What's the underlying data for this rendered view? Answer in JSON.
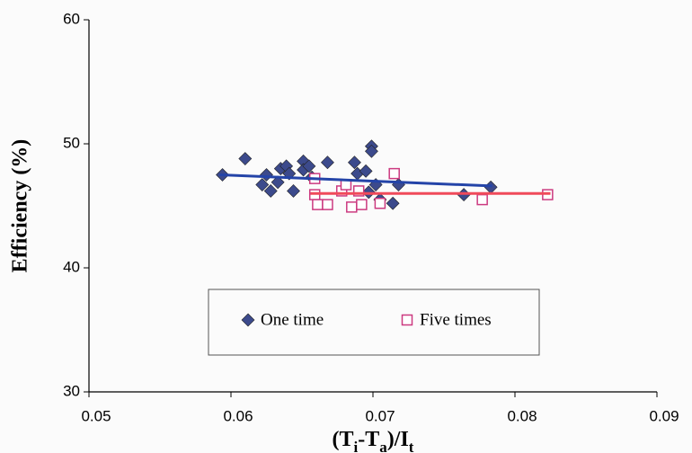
{
  "chart_data": {
    "type": "scatter",
    "xlabel": [
      "(T",
      "i",
      "-T",
      "a",
      ")/I",
      "t"
    ],
    "ylabel": "Efficiency (%)",
    "xlim": [
      0.05,
      0.09
    ],
    "xticks": [
      0.05,
      0.06,
      0.07,
      0.08,
      0.09
    ],
    "ylim": [
      30,
      60
    ],
    "yticks": [
      30,
      40,
      50,
      60
    ],
    "series": [
      {
        "name": "One time",
        "marker": "diamond",
        "color": "#3c4a8c",
        "trend_color": "#2444a8",
        "x": [
          0.0594,
          0.061,
          0.0622,
          0.0625,
          0.0628,
          0.0633,
          0.0635,
          0.0639,
          0.0641,
          0.0644,
          0.0651,
          0.0651,
          0.0655,
          0.0657,
          0.0668,
          0.0687,
          0.0689,
          0.0695,
          0.0699,
          0.0699,
          0.0697,
          0.0702,
          0.0705,
          0.0714,
          0.0718,
          0.0764,
          0.0783
        ],
        "values": [
          47.5,
          48.8,
          46.7,
          47.5,
          46.2,
          46.9,
          48.0,
          48.2,
          47.6,
          46.2,
          48.6,
          47.9,
          48.2,
          47.3,
          48.5,
          48.5,
          47.6,
          47.8,
          49.8,
          49.4,
          46.1,
          46.7,
          45.5,
          45.2,
          46.7,
          45.9,
          46.5
        ],
        "trend": {
          "x": [
            0.0592,
            0.0784
          ],
          "y": [
            47.5,
            46.6
          ]
        }
      },
      {
        "name": "Five times",
        "marker": "square",
        "color": "#cc3a80",
        "trend_color": "#f04a5a",
        "x": [
          0.0659,
          0.0659,
          0.0661,
          0.0668,
          0.0678,
          0.0681,
          0.0685,
          0.069,
          0.0692,
          0.0705,
          0.0715,
          0.0777,
          0.0823
        ],
        "values": [
          47.2,
          45.9,
          45.1,
          45.1,
          46.2,
          46.7,
          44.9,
          46.2,
          45.1,
          45.2,
          47.6,
          45.5,
          45.9
        ],
        "trend": {
          "x": [
            0.0656,
            0.0825
          ],
          "y": [
            46.0,
            46.0
          ]
        }
      }
    ]
  }
}
